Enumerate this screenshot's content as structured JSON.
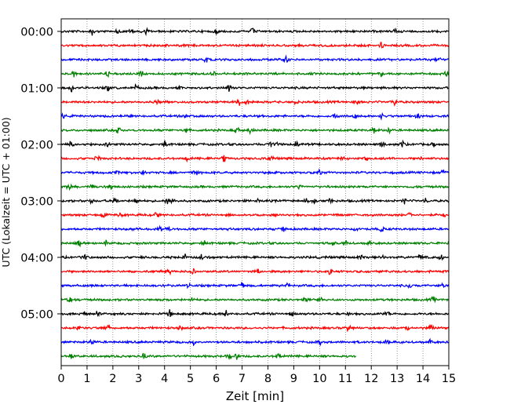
{
  "chart_data": {
    "type": "line",
    "title": "",
    "xlabel": "Zeit  [min]",
    "ylabel": "UTC (Lokalzeit = UTC + 01:00)",
    "xlim": [
      0,
      15
    ],
    "x_ticks": [
      "0",
      "1",
      "2",
      "3",
      "4",
      "5",
      "6",
      "7",
      "8",
      "9",
      "10",
      "11",
      "12",
      "13",
      "14",
      "15"
    ],
    "y_ticks": [
      "00:00",
      "01:00",
      "02:00",
      "03:00",
      "04:00",
      "05:00"
    ],
    "grid": "vertical dotted at each minute",
    "trace_minutes": 15,
    "traces_per_hour": 4,
    "trace_color_cycle": [
      "#000000",
      "#ff0000",
      "#0000ff",
      "#008000"
    ],
    "num_traces": 24,
    "last_trace_end_min": 11.4,
    "events": [
      [
        1.2,
        2.2,
        2.7,
        3.3,
        6.0,
        7.4,
        12.9
      ],
      [
        12.4
      ],
      [
        5.6,
        8.7,
        14.6
      ],
      [
        0.5,
        1.8,
        3.1,
        5.9,
        12.4,
        14.9
      ],
      [
        0.4,
        1.8,
        2.9,
        4.6,
        6.5
      ],
      [
        3.7,
        6.9,
        7.2,
        9.1,
        11.4,
        12.9
      ],
      [
        0.1,
        4.8,
        10.6,
        11.4,
        12.4,
        13.8
      ],
      [
        2.2,
        4.8,
        6.8,
        7.3,
        12.1,
        12.7
      ],
      [
        0.4,
        1.8,
        4.0,
        8.1,
        8.3,
        9.1,
        12.4,
        13.2,
        14.4
      ],
      [
        1.4,
        4.9,
        6.3,
        8.1,
        10.9,
        11.8,
        13.9
      ],
      [
        2.2,
        3.2,
        5.2,
        10.0,
        14.8
      ],
      [
        0.3,
        1.2,
        1.9,
        9.2
      ],
      [
        1.2,
        2.1,
        2.9,
        4.1,
        4.3,
        7.6,
        9.5,
        9.8,
        10.4,
        13.3,
        14.1
      ],
      [
        1.6,
        2.3,
        3.7,
        13.5,
        14.8
      ],
      [
        3.8,
        4.1,
        8.6,
        11.4,
        12.4
      ],
      [
        0.7,
        1.7,
        5.5,
        10.5,
        11.0,
        11.9
      ],
      [
        0.9,
        4.8,
        5.4,
        11.6,
        12.4,
        13.9,
        14.7
      ],
      [
        4.2,
        5.1,
        7.6,
        10.4
      ],
      [
        4.9,
        7.0,
        8.8,
        13.5,
        14.8
      ],
      [
        0.3,
        5.1,
        9.5,
        10.0,
        14.4
      ],
      [
        0.9,
        1.4,
        4.2,
        6.4,
        8.9,
        11.1,
        12.6
      ],
      [
        0.7,
        1.6,
        1.8,
        4.6,
        11.1,
        13.4,
        14.3
      ],
      [
        1.2,
        5.1,
        10.0,
        12.6,
        14.3
      ],
      [
        0.4,
        3.2,
        6.5,
        6.8,
        8.4
      ]
    ]
  }
}
